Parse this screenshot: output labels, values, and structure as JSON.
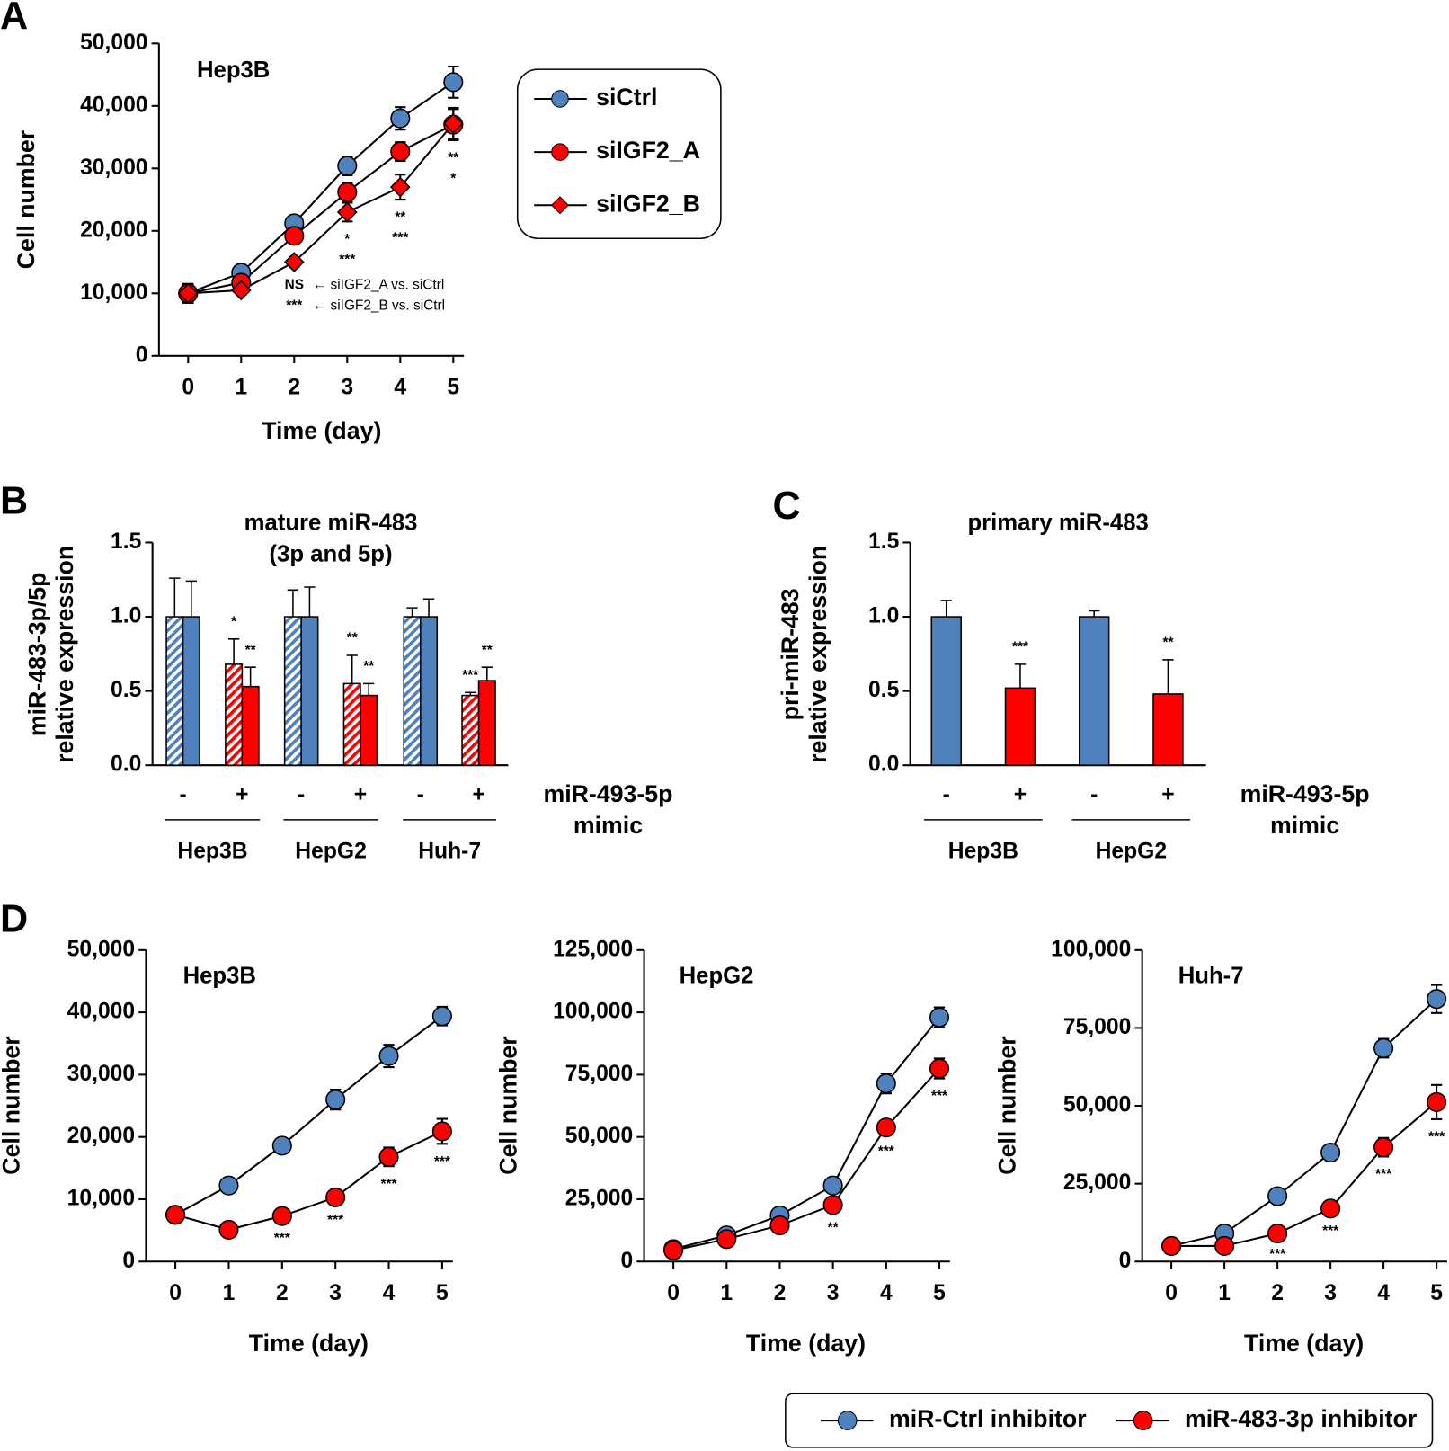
{
  "panel_labels": [
    "A",
    "B",
    "C",
    "D"
  ],
  "chart_data": [
    {
      "type": "line",
      "title": "Hep3B",
      "xlabel": "Time (day)",
      "ylabel": "Cell number",
      "legend": "right",
      "x": [
        0,
        1,
        2,
        3,
        4,
        5
      ],
      "xlim": [
        -0.55,
        5.2
      ],
      "xticks": [
        0,
        1,
        2,
        3,
        4,
        5
      ],
      "ylim": [
        0,
        50000
      ],
      "yticks": [
        0,
        {
          "value": 10000,
          "label": "10,000"
        },
        {
          "value": 20000,
          "label": "20,000"
        },
        {
          "value": 30000,
          "label": "30,000"
        },
        {
          "value": 40000,
          "label": "40,000"
        },
        {
          "value": 50000,
          "label": "50,000"
        }
      ],
      "series": [
        {
          "name": "siCtrl",
          "color": "#4f81bd",
          "marker": "circle",
          "values": [
            10000,
            13300,
            21200,
            30400,
            38000,
            43800
          ],
          "errors": [
            1500,
            1200,
            1200,
            1500,
            1800,
            2500
          ]
        },
        {
          "name": "siIGF2_A",
          "color": "#ff0000",
          "marker": "circle",
          "values": [
            10000,
            11700,
            19200,
            26200,
            32700,
            37000
          ],
          "errors": [
            1500,
            1000,
            1000,
            1500,
            1500,
            2500
          ],
          "significance": [
            null,
            null,
            "NS",
            "*",
            "**",
            "**"
          ],
          "note": "← siIGF2_A vs. siCtrl"
        },
        {
          "name": "siIGF2_B",
          "color": "#ff0000",
          "marker": "diamond",
          "values": [
            10000,
            10500,
            15000,
            23000,
            27000,
            37200
          ],
          "errors": [
            1500,
            700,
            800,
            1500,
            2000,
            2500
          ],
          "significance": [
            null,
            null,
            "***",
            "***",
            "***",
            "*"
          ],
          "note": "← siIGF2_B vs. siCtrl"
        }
      ]
    },
    {
      "type": "bar",
      "title": [
        "mature miR-483",
        "(3p and 5p)"
      ],
      "ylabel": [
        "miR-483-3p/5p",
        "relative expression"
      ],
      "xlabel": [
        "miR-493-5p",
        "mimic"
      ],
      "categories": [
        "-",
        "+",
        "-",
        "+",
        "-",
        "+"
      ],
      "groups": [
        "Hep3B",
        "HepG2",
        "Huh-7"
      ],
      "colors": [
        "#4f81bd",
        "#ff0000",
        "#4f81bd",
        "#ff0000",
        "#4f81bd",
        "#ff0000"
      ],
      "ylim": [
        0,
        1.5
      ],
      "yticks": [
        {
          "value": 0,
          "label": "0.0"
        },
        0.5,
        {
          "value": 1,
          "label": "1.0"
        },
        1.5
      ],
      "series": [
        {
          "pattern": "hatched",
          "values": [
            1.0,
            0.68,
            1.0,
            0.55,
            1.0,
            0.47
          ],
          "errors": [
            0.26,
            0.17,
            0.18,
            0.19,
            0.06,
            0.02
          ],
          "significance": [
            null,
            "*",
            null,
            "**",
            null,
            "***"
          ]
        },
        {
          "pattern": "solid",
          "values": [
            1.0,
            0.53,
            1.0,
            0.47,
            1.0,
            0.57
          ],
          "errors": [
            0.24,
            0.13,
            0.2,
            0.08,
            0.12,
            0.09
          ],
          "significance": [
            null,
            "**",
            null,
            "**",
            null,
            "**"
          ]
        }
      ]
    },
    {
      "type": "bar",
      "title": "primary miR-483",
      "ylabel": [
        "pri-miR-483",
        "relative expression"
      ],
      "xlabel": [
        "miR-493-5p",
        "mimic"
      ],
      "categories": [
        "-",
        "+",
        "-",
        "+"
      ],
      "groups": [
        "Hep3B",
        "HepG2"
      ],
      "colors": [
        "#4f81bd",
        "#ff0000",
        "#4f81bd",
        "#ff0000"
      ],
      "ylim": [
        0,
        1.5
      ],
      "yticks": [
        {
          "value": 0,
          "label": "0.0"
        },
        0.5,
        {
          "value": 1,
          "label": "1.0"
        },
        1.5
      ],
      "series": [
        {
          "pattern": "solid",
          "values": [
            1.0,
            0.52,
            1.0,
            0.48
          ],
          "errors": [
            0.11,
            0.16,
            0.04,
            0.23
          ],
          "significance": [
            null,
            "***",
            null,
            "**"
          ]
        }
      ]
    },
    {
      "type": "line",
      "title": "Hep3B",
      "xlabel": "Time (day)",
      "ylabel": "Cell number",
      "x": [
        0,
        1,
        2,
        3,
        4,
        5
      ],
      "xlim": [
        -0.55,
        5.2
      ],
      "xticks": [
        0,
        1,
        2,
        3,
        4,
        5
      ],
      "ylim": [
        0,
        50000
      ],
      "yticks": [
        0,
        {
          "value": 10000,
          "label": "10,000"
        },
        {
          "value": 20000,
          "label": "20,000"
        },
        {
          "value": 30000,
          "label": "30,000"
        },
        {
          "value": 40000,
          "label": "40,000"
        },
        {
          "value": 50000,
          "label": "50,000"
        }
      ],
      "series": [
        {
          "name": "miR-Ctrl inhibitor",
          "color": "#4f81bd",
          "marker": "circle",
          "values": [
            7500,
            12200,
            18600,
            26000,
            33000,
            39400
          ],
          "errors": [
            600,
            600,
            700,
            1600,
            1800,
            1500
          ]
        },
        {
          "name": "miR-483-3p inhibitor",
          "color": "#ff0000",
          "marker": "circle",
          "values": [
            7500,
            5100,
            7300,
            10300,
            16800,
            20900
          ],
          "errors": [
            600,
            500,
            700,
            800,
            1500,
            2000
          ],
          "significance": [
            null,
            null,
            "***",
            "***",
            "***",
            "***"
          ]
        }
      ]
    },
    {
      "type": "line",
      "title": "HepG2",
      "xlabel": "Time (day)",
      "ylabel": "Cell number",
      "x": [
        0,
        1,
        2,
        3,
        4,
        5
      ],
      "xlim": [
        -0.55,
        5.2
      ],
      "xticks": [
        0,
        1,
        2,
        3,
        4,
        5
      ],
      "ylim": [
        0,
        125000
      ],
      "yticks": [
        0,
        {
          "value": 25000,
          "label": "25,000"
        },
        {
          "value": 50000,
          "label": "50,000"
        },
        {
          "value": 75000,
          "label": "75,000"
        },
        {
          "value": 100000,
          "label": "100,000"
        },
        {
          "value": 125000,
          "label": "125,000"
        }
      ],
      "series": [
        {
          "name": "miR-Ctrl inhibitor",
          "color": "#4f81bd",
          "marker": "circle",
          "values": [
            5000,
            10500,
            18500,
            30500,
            71500,
            98000
          ],
          "errors": [
            1000,
            1000,
            1500,
            2000,
            4000,
            4000
          ]
        },
        {
          "name": "miR-483-3p inhibitor",
          "color": "#ff0000",
          "marker": "circle",
          "values": [
            4500,
            9000,
            14500,
            22700,
            53800,
            77500
          ],
          "errors": [
            800,
            800,
            1000,
            2000,
            2500,
            4000
          ],
          "significance": [
            null,
            null,
            null,
            "**",
            "***",
            "***"
          ]
        }
      ]
    },
    {
      "type": "line",
      "title": "Huh-7",
      "xlabel": "Time (day)",
      "ylabel": "Cell number",
      "legend": "bottom",
      "x": [
        0,
        1,
        2,
        3,
        4,
        5
      ],
      "xlim": [
        -0.55,
        5.2
      ],
      "xticks": [
        0,
        1,
        2,
        3,
        4,
        5
      ],
      "ylim": [
        0,
        100000
      ],
      "yticks": [
        0,
        {
          "value": 25000,
          "label": "25,000"
        },
        {
          "value": 50000,
          "label": "50,000"
        },
        {
          "value": 75000,
          "label": "75,000"
        },
        {
          "value": 100000,
          "label": "100,000"
        }
      ],
      "series": [
        {
          "name": "miR-Ctrl inhibitor",
          "color": "#4f81bd",
          "marker": "circle",
          "values": [
            5000,
            9000,
            21000,
            35000,
            68500,
            84300
          ],
          "errors": [
            1000,
            1000,
            1500,
            2000,
            3000,
            4500
          ]
        },
        {
          "name": "miR-483-3p inhibitor",
          "color": "#ff0000",
          "marker": "circle",
          "values": [
            5000,
            5000,
            9000,
            17000,
            36700,
            51200
          ],
          "errors": [
            800,
            800,
            1000,
            1500,
            3000,
            5500
          ],
          "significance": [
            null,
            null,
            "***",
            "***",
            "***",
            "***"
          ]
        }
      ]
    }
  ]
}
